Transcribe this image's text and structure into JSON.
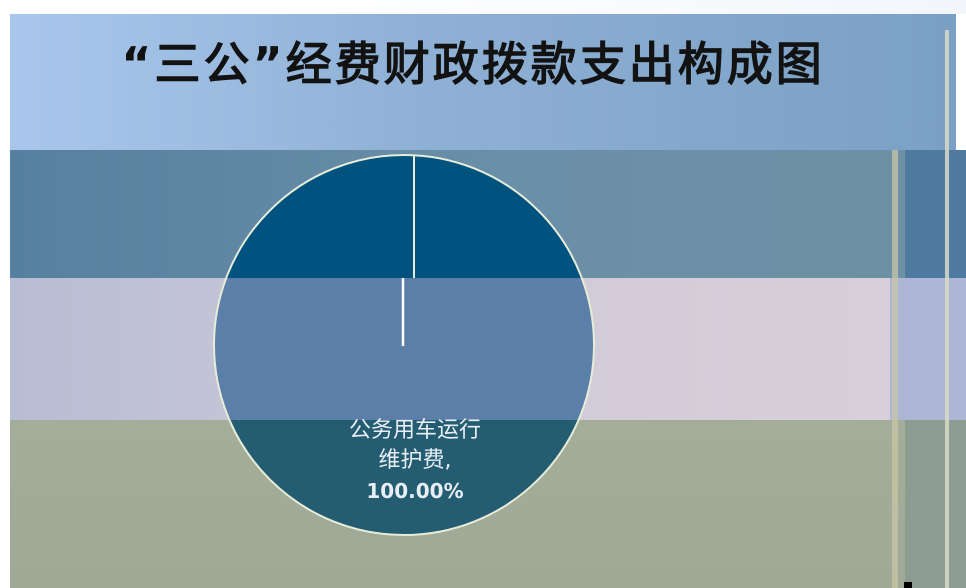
{
  "chart_data": {
    "type": "pie",
    "title": "“三公”经费财政拨款支出构成图",
    "categories": [
      "公务用车运行维护费"
    ],
    "values": [
      100.0
    ],
    "labels": [
      {
        "name_line1": "公务用车运行",
        "name_line2": "维护费,",
        "percent": "100.00%"
      }
    ],
    "legend": "none"
  },
  "colors": {
    "slice_top": "#00527f",
    "slice_middle": "#5b7fa8",
    "slice_bottom": "#245d72",
    "slice_border": "#e7ecd8",
    "label_text": "#e9eef4"
  }
}
